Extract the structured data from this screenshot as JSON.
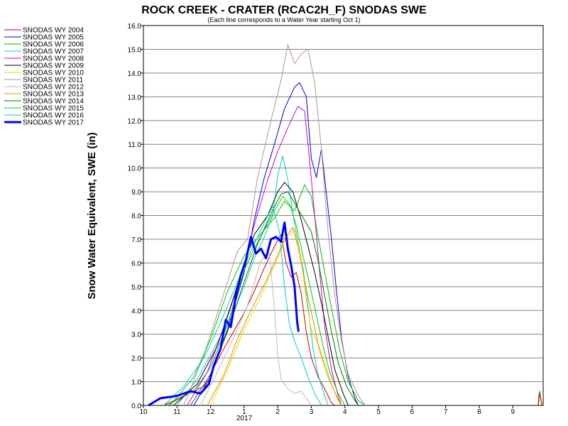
{
  "chart_data": {
    "type": "line",
    "title": "ROCK CREEK - CRATER (RCAC2H_F) SNODAS SWE",
    "subtitle": "(Each line corresponds to a Water Year starting Oct 1)",
    "ylabel": "Snow Water Equivalent, SWE (in)",
    "xlabel": "",
    "ylim": [
      0,
      16
    ],
    "y_ticks": [
      0,
      1,
      2,
      3,
      4,
      5,
      6,
      7,
      8,
      9,
      10,
      11,
      12,
      13,
      14,
      15,
      16
    ],
    "y_tick_labels": [
      "0.0",
      "1.0",
      "2.0",
      "3.0",
      "4.0",
      "5.0",
      "6.0",
      "7.0",
      "8.0",
      "9.0",
      "10.0",
      "11.0",
      "12.0",
      "13.0",
      "14.0",
      "15.0",
      "16.0"
    ],
    "x_ticks": [
      0,
      1,
      2,
      3,
      4,
      5,
      6,
      7,
      8,
      9,
      10,
      11
    ],
    "x_tick_labels": [
      "10",
      "11",
      "12",
      "1",
      "2",
      "3",
      "4",
      "5",
      "6",
      "7",
      "8",
      "9"
    ],
    "x_year_label": "2017",
    "grid": "horizontal",
    "legend_position": "top-left",
    "series": [
      {
        "name": "SNODAS WY 2004",
        "color": "#cc0000",
        "width": 1,
        "points": [
          [
            0.6,
            0
          ],
          [
            1.8,
            0.8
          ],
          [
            2.4,
            2.4
          ],
          [
            3.0,
            3.9
          ],
          [
            3.3,
            4.8
          ],
          [
            3.6,
            5.8
          ],
          [
            3.9,
            6.7
          ],
          [
            4.1,
            7.2
          ],
          [
            4.25,
            6.0
          ],
          [
            4.4,
            5.4
          ],
          [
            4.55,
            5.6
          ],
          [
            4.7,
            4.7
          ],
          [
            4.85,
            3.1
          ],
          [
            5.0,
            2.0
          ],
          [
            5.2,
            1.2
          ],
          [
            5.4,
            0.7
          ],
          [
            5.6,
            0.1
          ],
          [
            5.7,
            0
          ]
        ]
      },
      {
        "name": "SNODAS WY 2005",
        "color": "#0000cc",
        "width": 1,
        "points": [
          [
            1.5,
            0
          ],
          [
            2.0,
            1.2
          ],
          [
            2.5,
            3.2
          ],
          [
            3.0,
            5.6
          ],
          [
            3.3,
            7.8
          ],
          [
            3.6,
            9.6
          ],
          [
            3.9,
            11.0
          ],
          [
            4.2,
            12.5
          ],
          [
            4.5,
            13.4
          ],
          [
            4.65,
            13.6
          ],
          [
            4.85,
            13.0
          ],
          [
            5.0,
            10.4
          ],
          [
            5.15,
            9.6
          ],
          [
            5.3,
            10.8
          ],
          [
            5.45,
            8.9
          ],
          [
            5.6,
            7.0
          ],
          [
            5.75,
            4.8
          ],
          [
            5.9,
            2.8
          ],
          [
            6.1,
            1.2
          ],
          [
            6.3,
            0.3
          ],
          [
            6.4,
            0
          ]
        ]
      },
      {
        "name": "SNODAS WY 2006",
        "color": "#00bb00",
        "width": 1,
        "points": [
          [
            0.7,
            0
          ],
          [
            1.5,
            0.6
          ],
          [
            2.0,
            1.6
          ],
          [
            2.5,
            3.4
          ],
          [
            3.0,
            5.7
          ],
          [
            3.3,
            6.6
          ],
          [
            3.6,
            7.4
          ],
          [
            3.9,
            7.9
          ],
          [
            4.2,
            8.6
          ],
          [
            4.5,
            8.2
          ],
          [
            4.8,
            9.3
          ],
          [
            5.0,
            8.8
          ],
          [
            5.2,
            7.1
          ],
          [
            5.4,
            5.6
          ],
          [
            5.6,
            4.1
          ],
          [
            5.85,
            2.3
          ],
          [
            6.1,
            1.0
          ],
          [
            6.4,
            0.2
          ],
          [
            6.6,
            0
          ]
        ]
      },
      {
        "name": "SNODAS WY 2007",
        "color": "#00cccc",
        "width": 1,
        "points": [
          [
            1.0,
            0
          ],
          [
            1.6,
            1.1
          ],
          [
            2.1,
            2.4
          ],
          [
            2.6,
            3.7
          ],
          [
            3.0,
            5.0
          ],
          [
            3.3,
            6.2
          ],
          [
            3.6,
            7.1
          ],
          [
            3.85,
            8.0
          ],
          [
            4.0,
            9.7
          ],
          [
            4.15,
            10.5
          ],
          [
            4.3,
            9.5
          ],
          [
            4.45,
            8.1
          ],
          [
            4.6,
            6.9
          ],
          [
            4.75,
            5.8
          ],
          [
            4.9,
            4.2
          ],
          [
            5.05,
            2.4
          ],
          [
            5.2,
            1.3
          ],
          [
            5.4,
            0.4
          ],
          [
            5.5,
            0
          ]
        ]
      },
      {
        "name": "SNODAS WY 2008",
        "color": "#cc00cc",
        "width": 1,
        "points": [
          [
            1.3,
            0
          ],
          [
            1.9,
            1.4
          ],
          [
            2.4,
            3.3
          ],
          [
            2.9,
            5.4
          ],
          [
            3.3,
            7.6
          ],
          [
            3.7,
            9.5
          ],
          [
            4.0,
            10.7
          ],
          [
            4.3,
            11.7
          ],
          [
            4.6,
            12.6
          ],
          [
            4.8,
            12.4
          ],
          [
            4.95,
            10.3
          ],
          [
            5.1,
            8.0
          ],
          [
            5.25,
            5.6
          ],
          [
            5.4,
            3.3
          ],
          [
            5.6,
            1.5
          ],
          [
            5.8,
            0.4
          ],
          [
            5.9,
            0
          ]
        ]
      },
      {
        "name": "SNODAS WY 2009",
        "color": "#000000",
        "width": 1,
        "points": [
          [
            0.9,
            0
          ],
          [
            1.6,
            0.9
          ],
          [
            2.2,
            2.5
          ],
          [
            2.7,
            4.6
          ],
          [
            3.0,
            6.0
          ],
          [
            3.3,
            7.2
          ],
          [
            3.7,
            8.0
          ],
          [
            4.0,
            9.0
          ],
          [
            4.2,
            9.4
          ],
          [
            4.45,
            9.0
          ],
          [
            4.7,
            7.8
          ],
          [
            4.9,
            6.7
          ],
          [
            5.1,
            5.6
          ],
          [
            5.3,
            4.3
          ],
          [
            5.5,
            2.9
          ],
          [
            5.7,
            1.5
          ],
          [
            5.95,
            0.5
          ],
          [
            6.1,
            0
          ]
        ]
      },
      {
        "name": "SNODAS WY 2010",
        "color": "#dddd00",
        "width": 1,
        "points": [
          [
            2.0,
            0
          ],
          [
            2.5,
            1.5
          ],
          [
            3.0,
            3.2
          ],
          [
            3.5,
            4.6
          ],
          [
            3.9,
            5.9
          ],
          [
            4.2,
            6.9
          ],
          [
            4.5,
            7.4
          ],
          [
            4.7,
            6.2
          ],
          [
            4.85,
            4.4
          ],
          [
            5.0,
            3.2
          ],
          [
            5.2,
            2.6
          ],
          [
            5.4,
            1.8
          ],
          [
            5.6,
            0.9
          ],
          [
            5.8,
            0.2
          ],
          [
            5.9,
            0
          ]
        ]
      },
      {
        "name": "SNODAS WY 2011",
        "color": "#b89090",
        "width": 1,
        "points": [
          [
            1.2,
            0
          ],
          [
            1.8,
            2.1
          ],
          [
            2.3,
            4.3
          ],
          [
            2.8,
            6.5
          ],
          [
            3.1,
            7.0
          ],
          [
            3.4,
            9.6
          ],
          [
            3.8,
            12.0
          ],
          [
            4.1,
            13.7
          ],
          [
            4.3,
            15.2
          ],
          [
            4.5,
            14.4
          ],
          [
            4.7,
            14.8
          ],
          [
            4.9,
            15.0
          ],
          [
            5.1,
            13.6
          ],
          [
            5.3,
            10.8
          ],
          [
            5.5,
            7.3
          ],
          [
            5.7,
            4.6
          ],
          [
            5.9,
            2.7
          ],
          [
            6.1,
            1.3
          ],
          [
            6.4,
            0.4
          ],
          [
            6.6,
            0
          ]
        ]
      },
      {
        "name": "SNODAS WY 2012",
        "color": "#bbbbbb",
        "width": 1,
        "points": [
          [
            1.7,
            0
          ],
          [
            2.2,
            1.4
          ],
          [
            2.7,
            2.9
          ],
          [
            3.1,
            4.2
          ],
          [
            3.5,
            6.1
          ],
          [
            3.75,
            6.4
          ],
          [
            3.9,
            4.1
          ],
          [
            4.0,
            2.1
          ],
          [
            4.1,
            1.1
          ],
          [
            4.3,
            0.7
          ],
          [
            4.5,
            0.5
          ],
          [
            4.7,
            0.6
          ],
          [
            4.9,
            0.2
          ],
          [
            5.0,
            0
          ]
        ]
      },
      {
        "name": "SNODAS WY 2013",
        "color": "#ee8800",
        "width": 1,
        "points": [
          [
            1.9,
            0
          ],
          [
            2.4,
            1.3
          ],
          [
            2.8,
            2.8
          ],
          [
            3.2,
            4.0
          ],
          [
            3.6,
            5.1
          ],
          [
            3.9,
            6.0
          ],
          [
            4.2,
            7.0
          ],
          [
            4.45,
            7.5
          ],
          [
            4.65,
            6.4
          ],
          [
            4.85,
            4.9
          ],
          [
            5.05,
            3.6
          ],
          [
            5.25,
            2.3
          ],
          [
            5.5,
            1.2
          ],
          [
            5.75,
            0.4
          ],
          [
            5.9,
            0
          ]
        ]
      },
      {
        "name": "SNODAS WY 2014",
        "color": "#007700",
        "width": 1,
        "points": [
          [
            1.4,
            0
          ],
          [
            2.0,
            1.3
          ],
          [
            2.5,
            3.1
          ],
          [
            3.0,
            5.2
          ],
          [
            3.4,
            6.8
          ],
          [
            3.8,
            8.1
          ],
          [
            4.1,
            8.9
          ],
          [
            4.3,
            9.0
          ],
          [
            4.55,
            8.4
          ],
          [
            4.8,
            7.8
          ],
          [
            5.0,
            7.3
          ],
          [
            5.2,
            6.1
          ],
          [
            5.4,
            4.6
          ],
          [
            5.6,
            3.1
          ],
          [
            5.8,
            1.8
          ],
          [
            6.05,
            0.8
          ],
          [
            6.3,
            0.2
          ],
          [
            6.4,
            0
          ]
        ]
      },
      {
        "name": "SNODAS WY 2015",
        "color": "#00cc00",
        "width": 1,
        "points": [
          [
            0.8,
            0
          ],
          [
            1.5,
            1.2
          ],
          [
            2.0,
            2.8
          ],
          [
            2.5,
            4.8
          ],
          [
            3.0,
            6.3
          ],
          [
            3.3,
            6.9
          ],
          [
            3.6,
            7.4
          ],
          [
            3.9,
            8.2
          ],
          [
            4.15,
            8.8
          ],
          [
            4.35,
            8.5
          ],
          [
            4.55,
            7.6
          ],
          [
            4.75,
            6.3
          ],
          [
            4.95,
            5.1
          ],
          [
            5.15,
            3.8
          ],
          [
            5.35,
            2.5
          ],
          [
            5.55,
            1.4
          ],
          [
            5.8,
            0.5
          ],
          [
            6.0,
            0
          ]
        ]
      },
      {
        "name": "SNODAS WY 2016",
        "color": "#00cccc",
        "width": 1,
        "points": [
          [
            0.6,
            0
          ],
          [
            1.2,
            0.8
          ],
          [
            1.8,
            2.0
          ],
          [
            2.3,
            3.5
          ],
          [
            2.8,
            5.2
          ],
          [
            3.2,
            6.5
          ],
          [
            3.6,
            7.7
          ],
          [
            3.85,
            8.4
          ],
          [
            4.05,
            7.3
          ],
          [
            4.2,
            5.0
          ],
          [
            4.35,
            3.4
          ],
          [
            4.5,
            2.7
          ],
          [
            4.7,
            2.0
          ],
          [
            4.9,
            1.2
          ],
          [
            5.1,
            0.5
          ],
          [
            5.3,
            0
          ]
        ]
      },
      {
        "name": "SNODAS WY 2017",
        "color": "#0000ff",
        "width": 3,
        "points": [
          [
            0.15,
            0
          ],
          [
            0.5,
            0.3
          ],
          [
            1.0,
            0.4
          ],
          [
            1.4,
            0.6
          ],
          [
            1.7,
            0.5
          ],
          [
            1.95,
            0.9
          ],
          [
            2.1,
            1.7
          ],
          [
            2.3,
            2.4
          ],
          [
            2.45,
            3.6
          ],
          [
            2.6,
            3.3
          ],
          [
            2.75,
            4.6
          ],
          [
            2.9,
            5.5
          ],
          [
            3.05,
            6.1
          ],
          [
            3.2,
            7.1
          ],
          [
            3.35,
            6.4
          ],
          [
            3.5,
            6.6
          ],
          [
            3.65,
            6.2
          ],
          [
            3.8,
            7.0
          ],
          [
            3.95,
            7.1
          ],
          [
            4.1,
            6.9
          ],
          [
            4.2,
            7.7
          ],
          [
            4.3,
            6.6
          ],
          [
            4.4,
            5.9
          ],
          [
            4.5,
            5.0
          ],
          [
            4.58,
            3.5
          ],
          [
            4.62,
            3.1
          ]
        ]
      },
      {
        "name": "",
        "color": "#00bb00",
        "width": 1,
        "points": [
          [
            11.75,
            0
          ],
          [
            11.78,
            0.5
          ],
          [
            11.8,
            0.6
          ],
          [
            11.83,
            0.3
          ],
          [
            11.86,
            0
          ]
        ]
      },
      {
        "name": "",
        "color": "#cc0000",
        "width": 1,
        "points": [
          [
            11.76,
            0
          ],
          [
            11.79,
            0.4
          ],
          [
            11.81,
            0.5
          ],
          [
            11.84,
            0.2
          ],
          [
            11.87,
            0
          ]
        ]
      }
    ]
  }
}
